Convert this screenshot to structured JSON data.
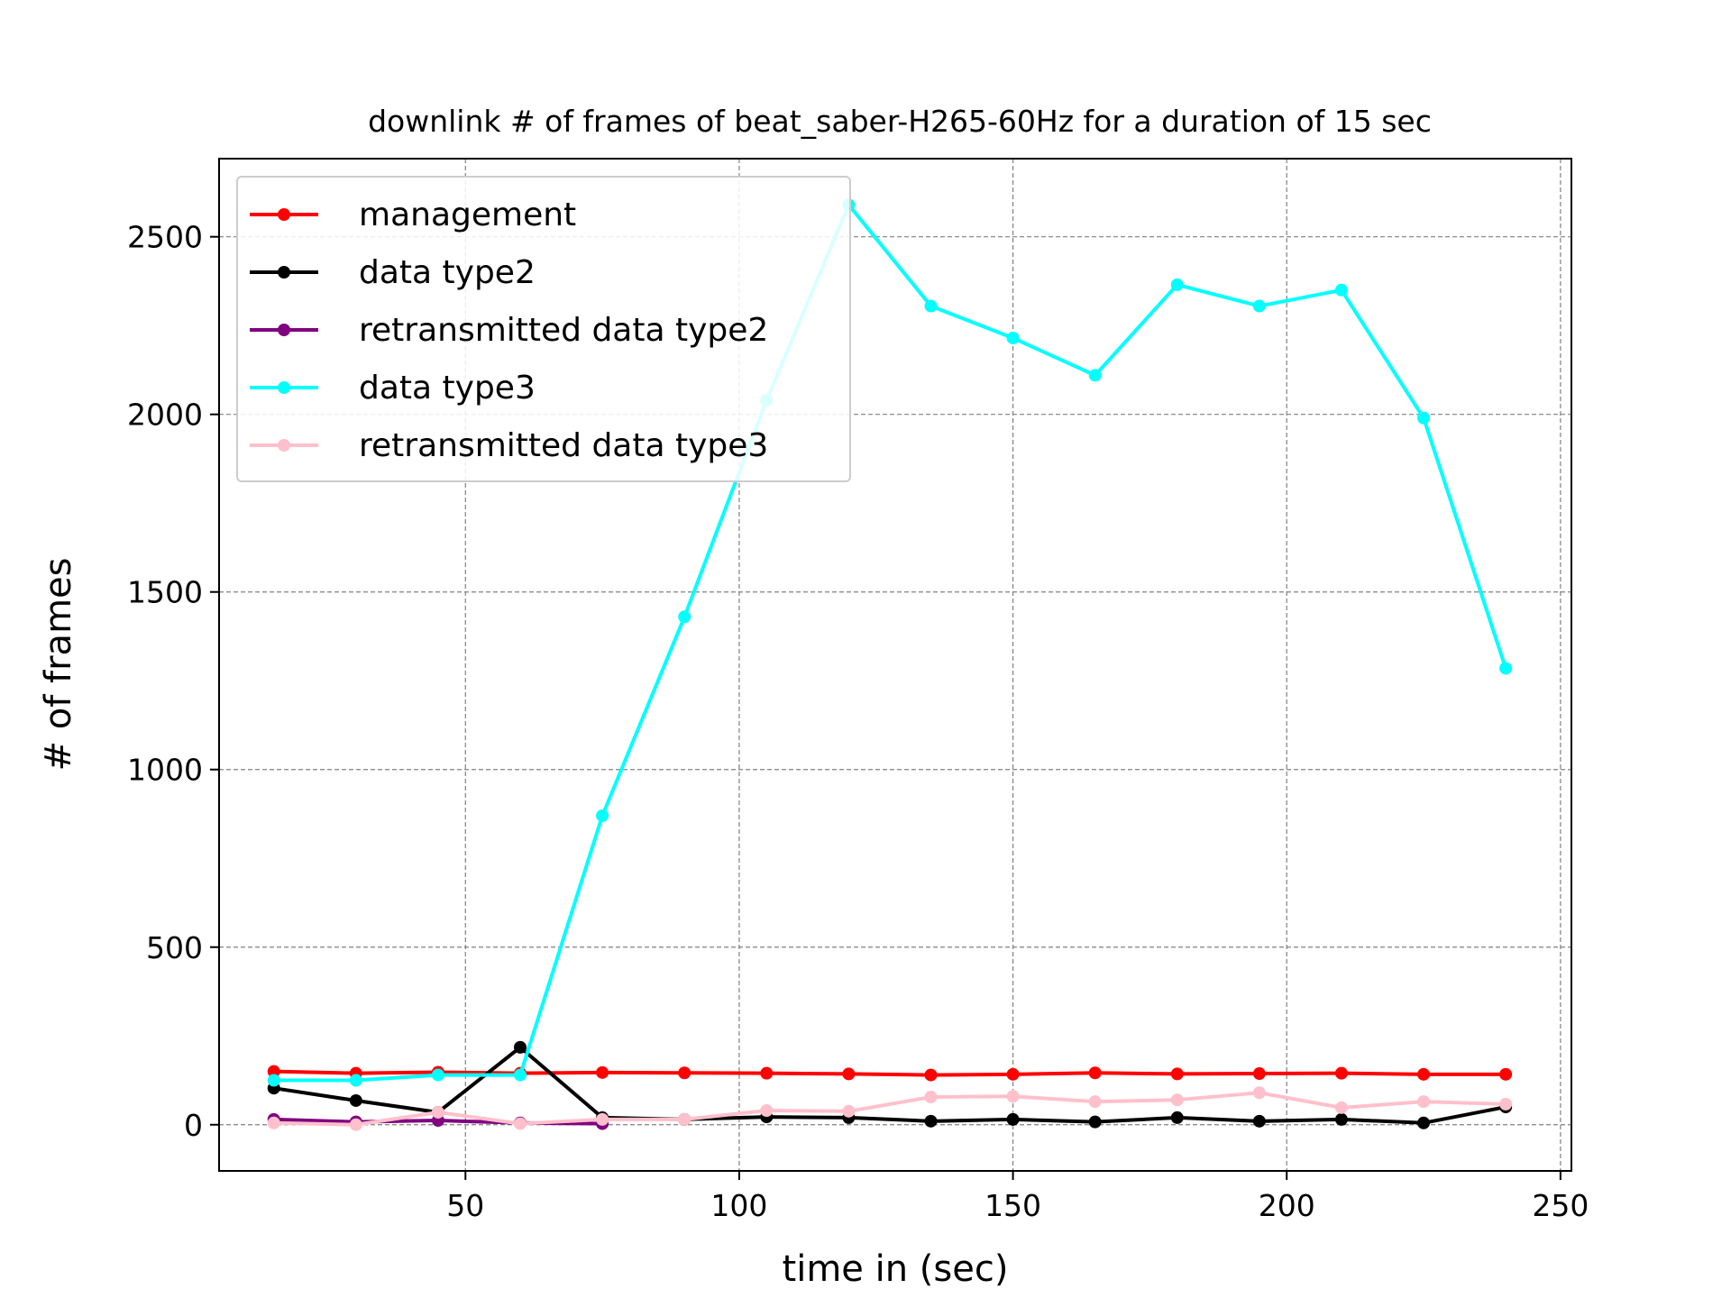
{
  "chart_data": {
    "type": "line",
    "title": "downlink # of frames of beat_saber-H265-60Hz for a duration of 15 sec",
    "xlabel": "time in (sec)",
    "ylabel": "# of frames",
    "xlim": [
      5,
      252
    ],
    "ylim": [
      -130,
      2720
    ],
    "xticks": [
      50,
      100,
      150,
      200,
      250
    ],
    "yticks": [
      0,
      500,
      1000,
      1500,
      2000,
      2500
    ],
    "grid": true,
    "legend_position": "top-left",
    "series": [
      {
        "name": "management",
        "color": "#ff0000",
        "x": [
          15,
          30,
          45,
          60,
          75,
          90,
          105,
          120,
          135,
          150,
          165,
          180,
          195,
          210,
          225,
          240
        ],
        "values": [
          150,
          145,
          148,
          145,
          147,
          146,
          145,
          143,
          140,
          142,
          146,
          143,
          144,
          145,
          142,
          142
        ]
      },
      {
        "name": "data type2",
        "color": "#000000",
        "x": [
          15,
          30,
          45,
          60,
          75,
          90,
          105,
          120,
          135,
          150,
          165,
          180,
          195,
          210,
          225,
          240
        ],
        "values": [
          103,
          68,
          35,
          218,
          20,
          15,
          22,
          20,
          10,
          15,
          8,
          20,
          10,
          15,
          5,
          50
        ]
      },
      {
        "name": "retransmitted data type2",
        "color": "#800080",
        "x": [
          15,
          30,
          45,
          60,
          75
        ],
        "values": [
          15,
          8,
          12,
          5,
          3
        ]
      },
      {
        "name": "data type3",
        "color": "#00ffff",
        "x": [
          15,
          30,
          45,
          60,
          75,
          90,
          105,
          120,
          135,
          150,
          165,
          180,
          195,
          210,
          225,
          240
        ],
        "values": [
          125,
          125,
          140,
          140,
          870,
          1430,
          2040,
          2590,
          2305,
          2215,
          2110,
          2365,
          2305,
          2350,
          1990,
          1285
        ]
      },
      {
        "name": "retransmitted data type3",
        "color": "#ffc0cb",
        "x": [
          15,
          30,
          45,
          60,
          75,
          90,
          105,
          120,
          135,
          150,
          165,
          180,
          195,
          210,
          225,
          240
        ],
        "values": [
          5,
          0,
          35,
          3,
          15,
          15,
          40,
          38,
          78,
          80,
          65,
          70,
          90,
          48,
          65,
          58
        ]
      }
    ]
  }
}
